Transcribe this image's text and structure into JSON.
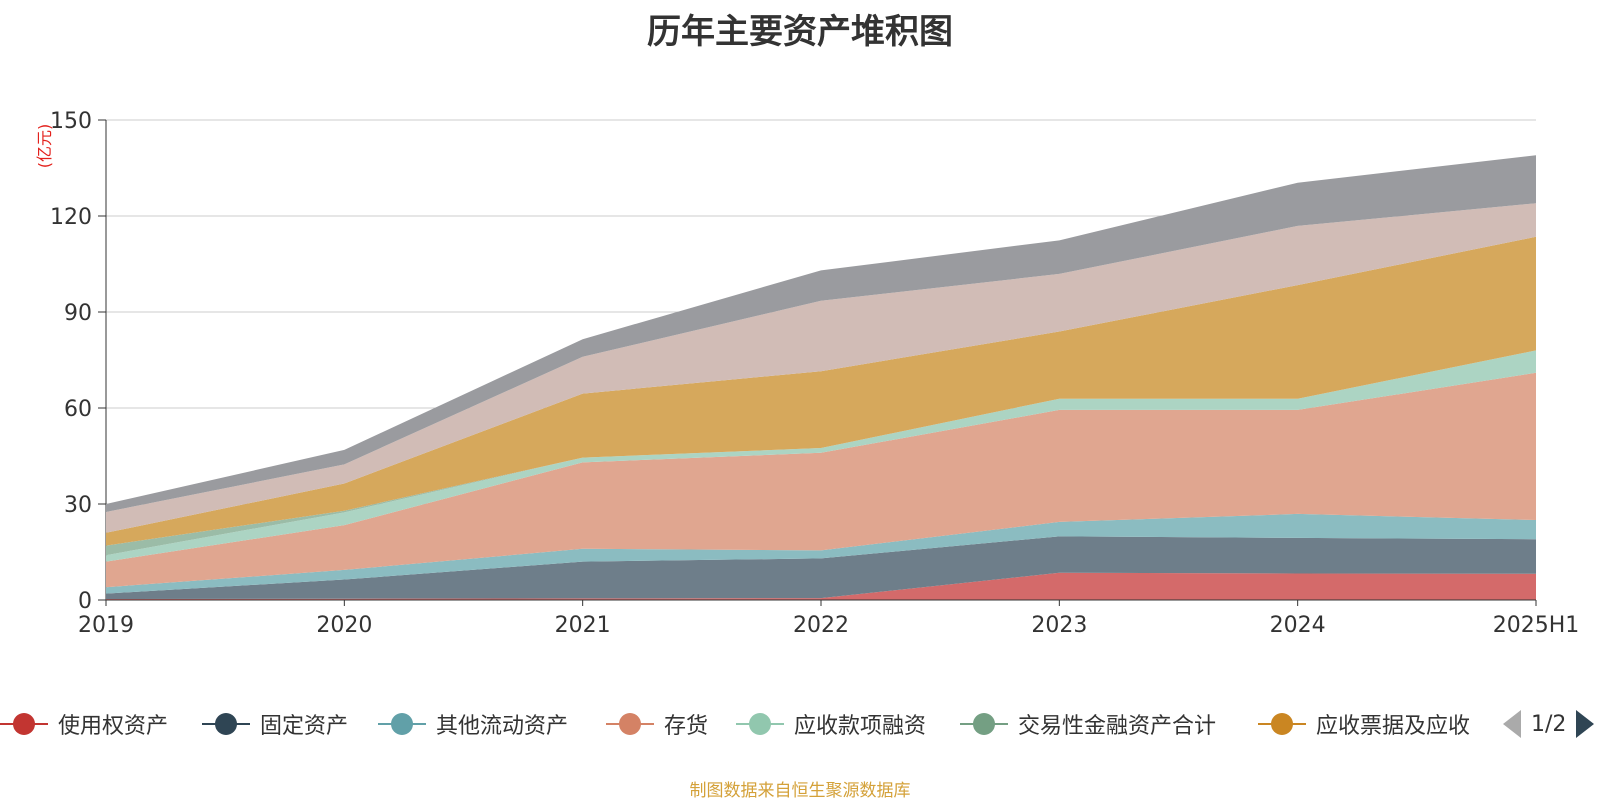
{
  "chart_data": {
    "type": "area",
    "stacked": true,
    "title": "历年主要资产堆积图",
    "unit_label": "(亿元)",
    "categories": [
      "2019",
      "2020",
      "2021",
      "2022",
      "2023",
      "2024",
      "2025H1"
    ],
    "ylim": [
      0,
      150
    ],
    "yticks": [
      0,
      30,
      60,
      90,
      120,
      150
    ],
    "grid": true,
    "series": [
      {
        "name": "使用权资产",
        "color": "#c23531",
        "area_color": "#d46a6a",
        "values": [
          0.3,
          0.4,
          0.5,
          0.6,
          8.5,
          8.3,
          8.2
        ]
      },
      {
        "name": "固定资产",
        "color": "#2f4554",
        "area_color": "#6e7e8a",
        "values": [
          1.7,
          6.0,
          11.5,
          12.4,
          11.4,
          11.1,
          10.8
        ]
      },
      {
        "name": "其他流动资产",
        "color": "#61a0a8",
        "area_color": "#8bbcc1",
        "values": [
          2.0,
          3.0,
          4.0,
          2.5,
          4.5,
          7.5,
          6.0
        ]
      },
      {
        "name": "存货",
        "color": "#d48265",
        "area_color": "#e0a690",
        "values": [
          8.0,
          14.0,
          27.0,
          30.5,
          35.0,
          32.5,
          46.0
        ]
      },
      {
        "name": "应收款项融资",
        "color": "#91c7ae",
        "area_color": "#acd4c3",
        "values": [
          2.0,
          4.0,
          1.5,
          1.5,
          3.5,
          3.5,
          7.0
        ]
      },
      {
        "name": "交易性金融资产合计",
        "color": "#749f83",
        "area_color": "#9bbca7",
        "values": [
          3.0,
          0.5,
          0,
          0,
          0,
          0,
          0
        ]
      },
      {
        "name": "应收票据及应收",
        "color": "#ca8622",
        "area_color": "#d6a85c",
        "values": [
          4.0,
          8.5,
          20.0,
          24.0,
          21.0,
          35.5,
          35.5
        ]
      },
      {
        "name": "",
        "color": "#bda29a",
        "area_color": "#d1bcb6",
        "values": [
          6.5,
          6.0,
          11.5,
          22.0,
          18.0,
          18.5,
          10.5
        ]
      },
      {
        "name": "",
        "color": "#6e7074",
        "area_color": "#9a9b9f",
        "values": [
          2.5,
          4.5,
          5.5,
          9.5,
          10.5,
          13.5,
          15.0
        ]
      }
    ]
  },
  "legend": {
    "page_indicator": "1/2"
  },
  "footer": {
    "source_text": "制图数据来自恒生聚源数据库"
  }
}
